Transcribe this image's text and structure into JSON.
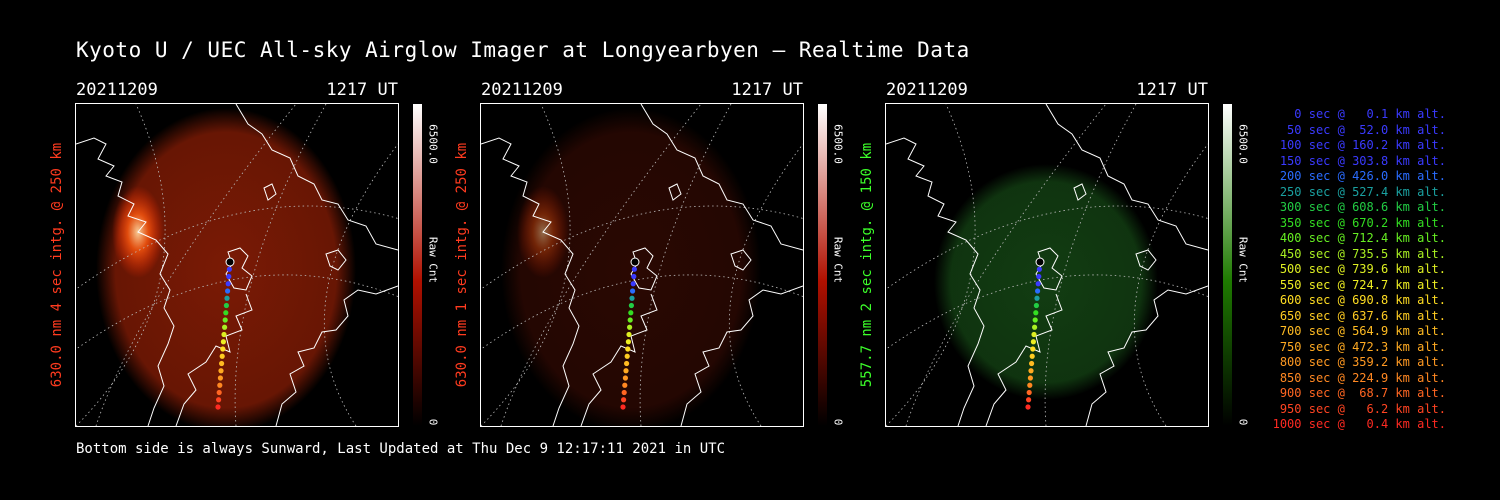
{
  "title": "Kyoto U / UEC All-sky Airglow Imager at Longyearbyen — Realtime Data",
  "footer": "Bottom side is always Sunward, Last Updated at Thu Dec  9 12:17:11 2021 in UTC",
  "panels": [
    {
      "date": "20211209",
      "time": "1217 UT",
      "ylabel": "630.0 nm 4 sec intg. @ 250 km",
      "label_color": "#ff3b1f",
      "cbar_max": "6500.0",
      "cbar_min": "0",
      "cbar_unit": "Raw Cnt",
      "colors": {
        "low": "#000000",
        "mid": "#b01000",
        "high": "#ffffff",
        "glow": "#7a1a05"
      },
      "glow_level": 0.75
    },
    {
      "date": "20211209",
      "time": "1217 UT",
      "ylabel": "630.0 nm 1 sec intg. @ 250 km",
      "label_color": "#ff3b1f",
      "cbar_max": "6500.0",
      "cbar_min": "0",
      "cbar_unit": "Raw Cnt",
      "colors": {
        "low": "#000000",
        "mid": "#b01000",
        "high": "#ffffff",
        "glow": "#2a0802"
      },
      "glow_level": 0.25
    },
    {
      "date": "20211209",
      "time": "1217 UT",
      "ylabel": "557.7 nm 2 sec intg. @ 150 km",
      "label_color": "#3cff2a",
      "cbar_max": "6500.0",
      "cbar_min": "0",
      "cbar_unit": "Raw Cnt",
      "colors": {
        "low": "#000000",
        "mid": "#1e7a00",
        "high": "#ffffff",
        "glow": "#123d12"
      },
      "glow_level": 0.4
    }
  ],
  "legend": [
    {
      "text": "0 sec @   0.1 km alt.",
      "color": "#3a3aff"
    },
    {
      "text": "50 sec @  52.0 km alt.",
      "color": "#3a3aff"
    },
    {
      "text": "100 sec @ 160.2 km alt.",
      "color": "#3a3aff"
    },
    {
      "text": "150 sec @ 303.8 km alt.",
      "color": "#3a3aff"
    },
    {
      "text": "200 sec @ 426.0 km alt.",
      "color": "#2a6cff"
    },
    {
      "text": "250 sec @ 527.4 km alt.",
      "color": "#1aa0a0"
    },
    {
      "text": "300 sec @ 608.6 km alt.",
      "color": "#22cc44"
    },
    {
      "text": "350 sec @ 670.2 km alt.",
      "color": "#33dd22"
    },
    {
      "text": "400 sec @ 712.4 km alt.",
      "color": "#66ee22"
    },
    {
      "text": "450 sec @ 735.5 km alt.",
      "color": "#aaf022"
    },
    {
      "text": "500 sec @ 739.6 km alt.",
      "color": "#ddee22"
    },
    {
      "text": "550 sec @ 724.7 km alt.",
      "color": "#eeee22"
    },
    {
      "text": "600 sec @ 690.8 km alt.",
      "color": "#ffdd22"
    },
    {
      "text": "650 sec @ 637.6 km alt.",
      "color": "#ffcc22"
    },
    {
      "text": "700 sec @ 564.9 km alt.",
      "color": "#ffbb22"
    },
    {
      "text": "750 sec @ 472.3 km alt.",
      "color": "#ffaa22"
    },
    {
      "text": "800 sec @ 359.2 km alt.",
      "color": "#ff9922"
    },
    {
      "text": "850 sec @ 224.9 km alt.",
      "color": "#ff8822"
    },
    {
      "text": "900 sec @  68.7 km alt.",
      "color": "#ff6622"
    },
    {
      "text": "950 sec @   6.2 km alt.",
      "color": "#ff4422"
    },
    {
      "text": "1000 sec @   0.4 km alt.",
      "color": "#ff2a22"
    }
  ]
}
